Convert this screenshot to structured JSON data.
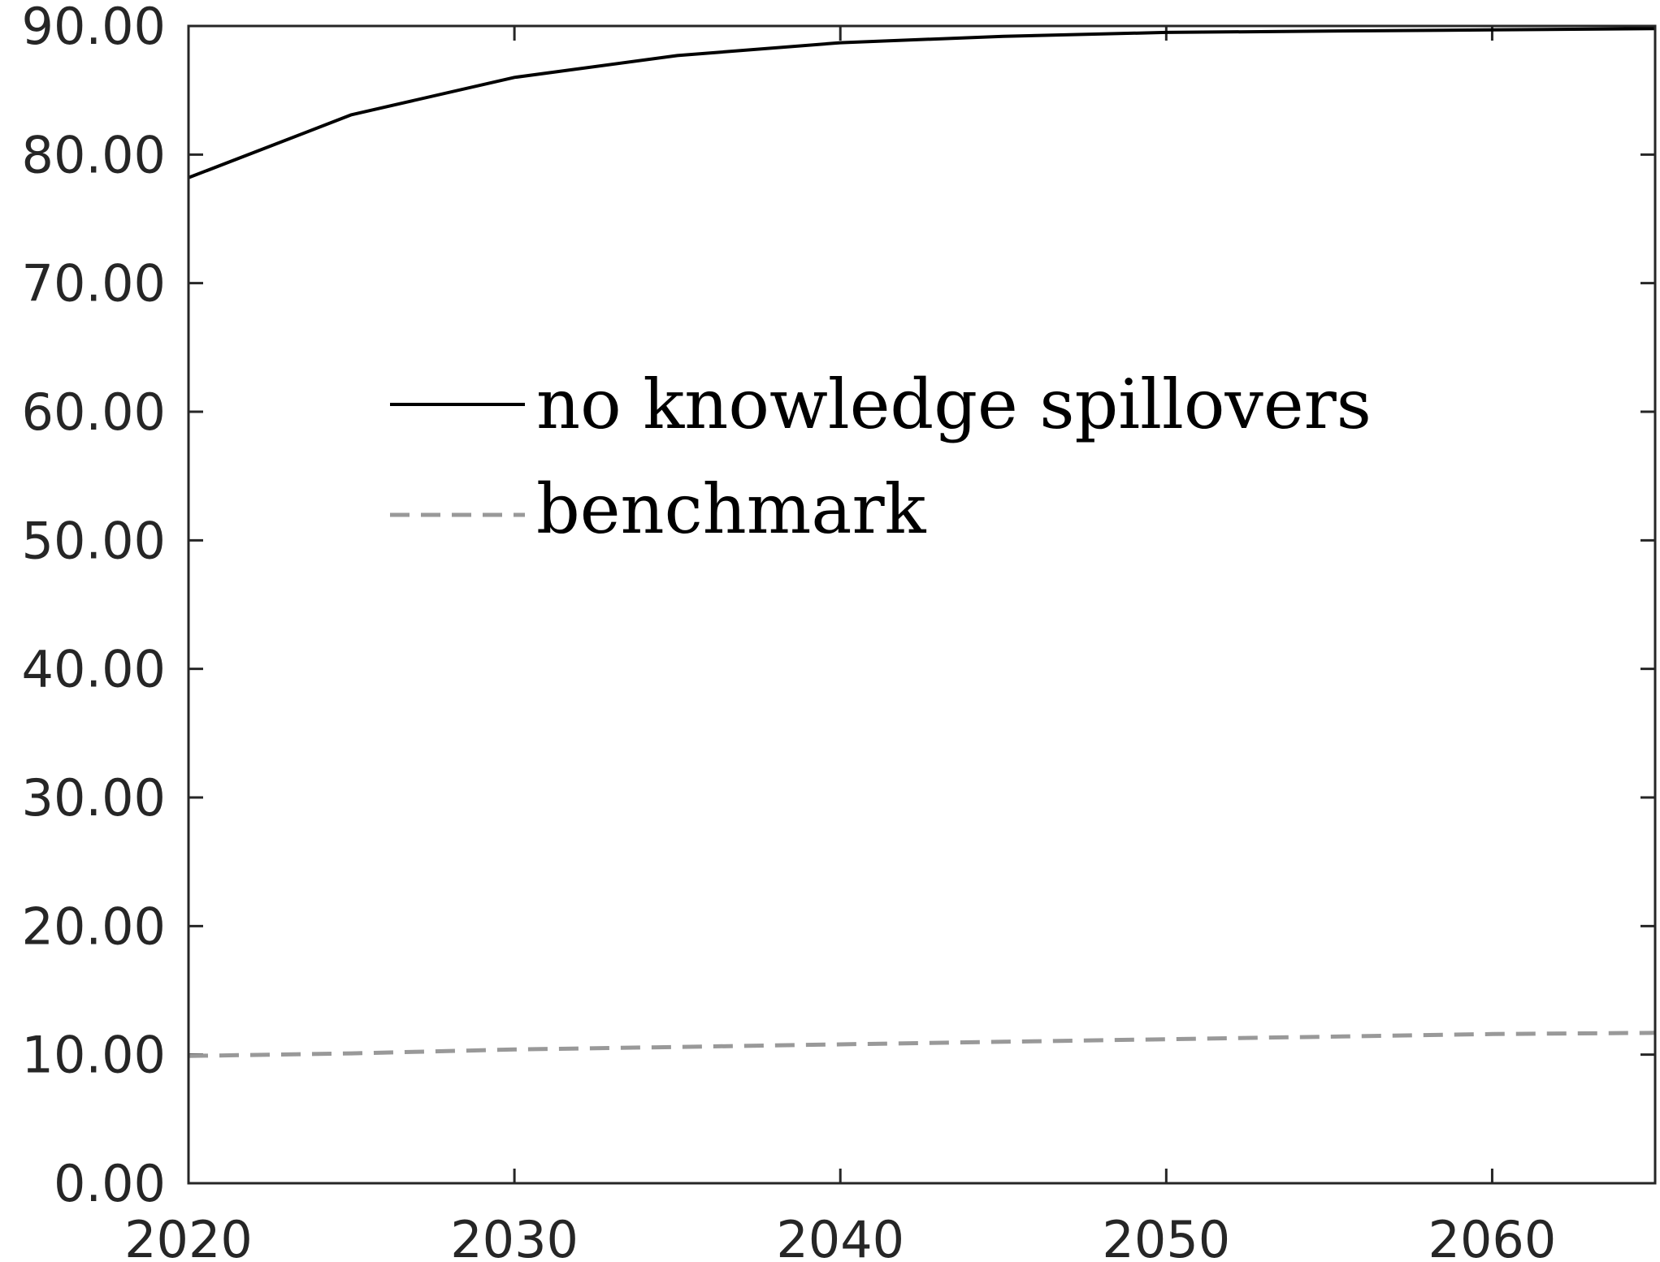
{
  "chart_data": {
    "type": "line",
    "title": "",
    "xlabel": "",
    "ylabel": "",
    "xlim": [
      2020,
      2065
    ],
    "ylim": [
      0,
      90
    ],
    "x_ticks": [
      2020,
      2030,
      2040,
      2050,
      2060
    ],
    "x_tick_labels": [
      "2020",
      "2030",
      "2040",
      "2050",
      "2060"
    ],
    "y_ticks": [
      0,
      10,
      20,
      30,
      40,
      50,
      60,
      70,
      80,
      90
    ],
    "y_tick_labels": [
      "0.00",
      "10.00",
      "20.00",
      "30.00",
      "40.00",
      "50.00",
      "60.00",
      "70.00",
      "80.00",
      "90.00"
    ],
    "grid": false,
    "legend_position": "upper-center",
    "series": [
      {
        "name": "no knowledge spillovers",
        "color": "#000000",
        "style": "solid",
        "x": [
          2020,
          2025,
          2030,
          2035,
          2040,
          2045,
          2050,
          2055,
          2060,
          2065
        ],
        "y": [
          78.2,
          83.1,
          86.0,
          87.7,
          88.7,
          89.2,
          89.5,
          89.6,
          89.7,
          89.8
        ]
      },
      {
        "name": "benchmark",
        "color": "#999999",
        "style": "dashed",
        "x": [
          2020,
          2025,
          2030,
          2035,
          2040,
          2045,
          2050,
          2055,
          2060,
          2065
        ],
        "y": [
          9.9,
          10.1,
          10.4,
          10.6,
          10.8,
          11.0,
          11.2,
          11.4,
          11.6,
          11.7
        ]
      }
    ]
  }
}
